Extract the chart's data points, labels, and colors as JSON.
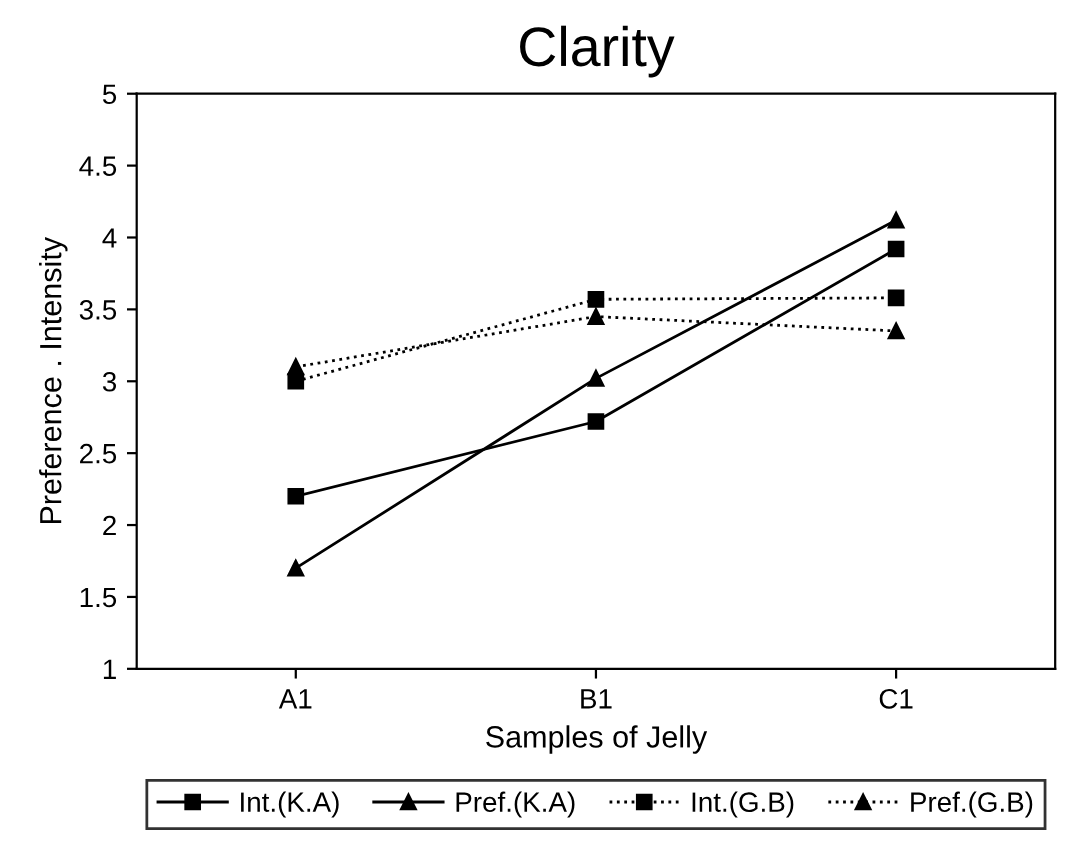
{
  "chart_data": {
    "type": "line",
    "title": "Clarity",
    "xlabel": "Samples of Jelly",
    "ylabel": "Preference . Intensity",
    "categories": [
      "A1",
      "B1",
      "C1"
    ],
    "series": [
      {
        "name": "Int.(K.A)",
        "color": "#000000",
        "marker": "square",
        "line_style": "solid",
        "values": [
          2.2,
          2.72,
          3.92
        ]
      },
      {
        "name": "Pref.(K.A)",
        "color": "#000000",
        "marker": "triangle",
        "line_style": "solid",
        "values": [
          1.7,
          3.02,
          4.12
        ]
      },
      {
        "name": "Int.(G.B)",
        "color": "#000000",
        "marker": "square",
        "line_style": "dotted",
        "values": [
          3.0,
          3.57,
          3.58
        ]
      },
      {
        "name": "Pref.(G.B)",
        "color": "#000000",
        "marker": "triangle",
        "line_style": "dotted",
        "values": [
          3.1,
          3.45,
          3.35
        ]
      }
    ],
    "ylim": [
      1,
      5
    ],
    "yticks": [
      1,
      1.5,
      2,
      2.5,
      3,
      3.5,
      4,
      4.5,
      5
    ],
    "grid": false,
    "legend": "bottom"
  }
}
